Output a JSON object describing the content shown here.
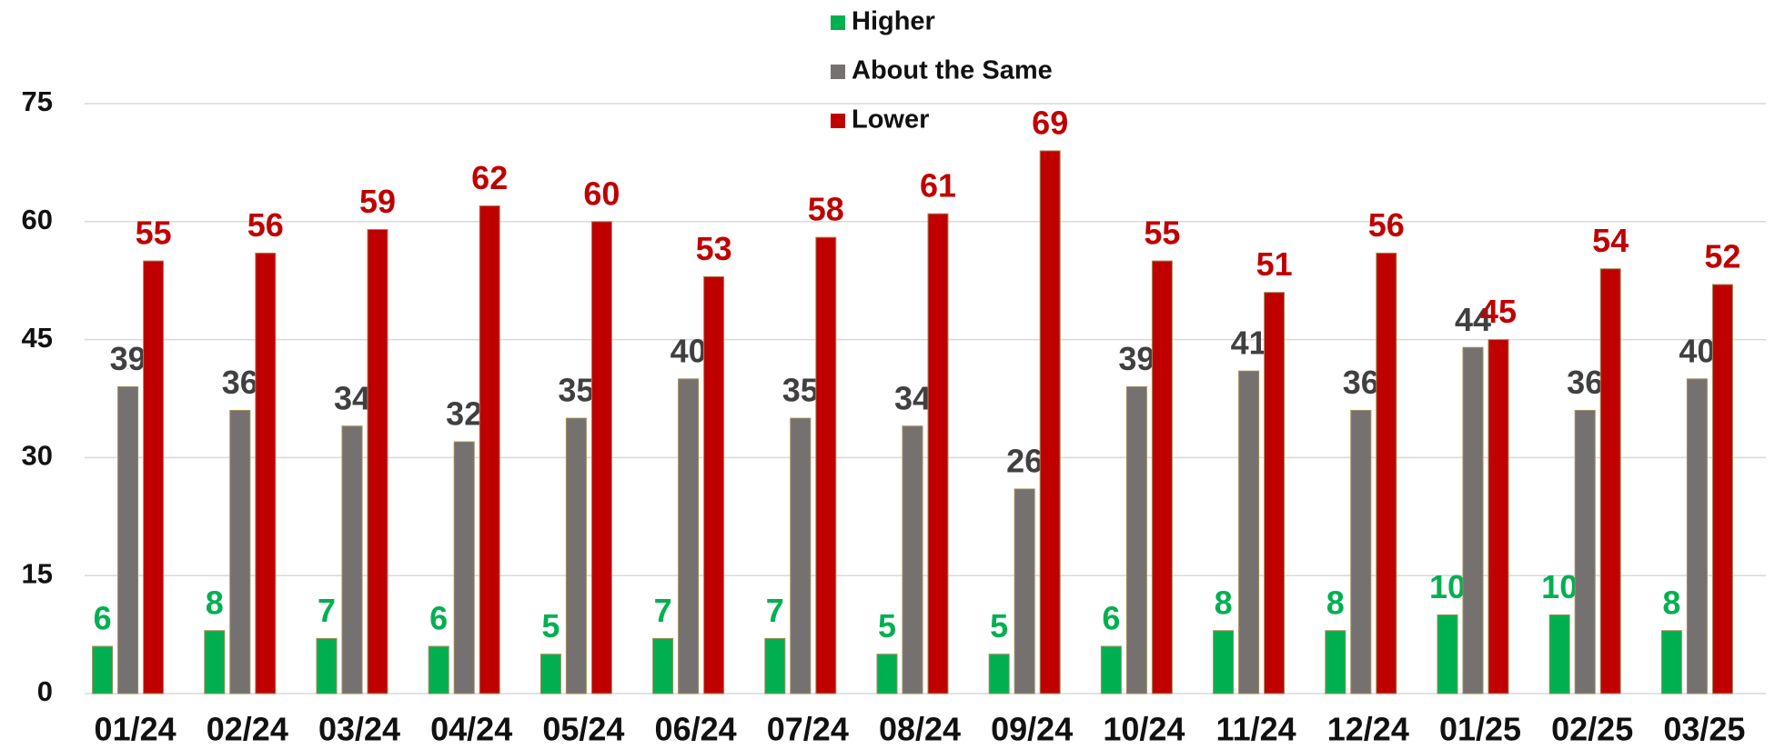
{
  "chart_data": {
    "type": "bar",
    "categories": [
      "01/24",
      "02/24",
      "03/24",
      "04/24",
      "05/24",
      "06/24",
      "07/24",
      "08/24",
      "09/24",
      "10/24",
      "11/24",
      "12/24",
      "01/25",
      "02/25",
      "03/25"
    ],
    "series": [
      {
        "name": "Higher",
        "color": "#00b050",
        "label_color": "#00b050",
        "values": [
          6,
          8,
          7,
          6,
          5,
          7,
          7,
          5,
          5,
          6,
          8,
          8,
          10,
          10,
          8
        ]
      },
      {
        "name": "About the Same",
        "color": "#767171",
        "label_color": "#404040",
        "values": [
          39,
          36,
          34,
          32,
          35,
          40,
          35,
          34,
          26,
          39,
          41,
          36,
          44,
          36,
          40
        ]
      },
      {
        "name": "Lower",
        "color": "#c00000",
        "label_color": "#c00000",
        "values": [
          55,
          56,
          59,
          62,
          60,
          53,
          58,
          61,
          69,
          55,
          51,
          56,
          45,
          54,
          52
        ]
      }
    ],
    "ylim": [
      0,
      75
    ],
    "yticks": [
      0,
      15,
      30,
      45,
      60,
      75
    ],
    "grid": true,
    "legend": "top"
  }
}
